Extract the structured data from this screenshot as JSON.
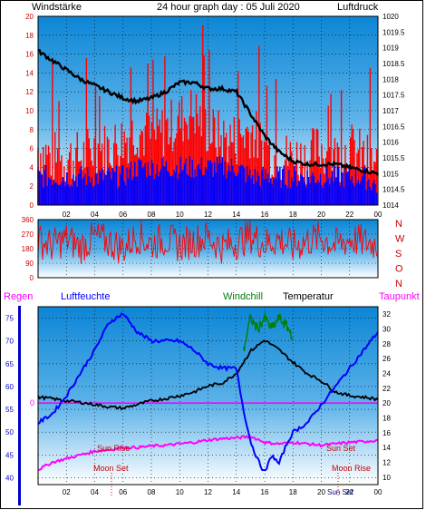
{
  "header": {
    "left_label": "Windstärke",
    "title": "24 hour graph day : 05 Juli 2020",
    "right_label": "Luftdruck"
  },
  "colors": {
    "wind": "#ff0000",
    "gust": "#0000ff",
    "pressure": "#000000",
    "humidity": "#0000ff",
    "temperature": "#000000",
    "dewpoint": "#ff00ff",
    "windchill": "#008000",
    "rain": "#ff00ff",
    "annotation": "#cc0000"
  },
  "chart_data": [
    {
      "type": "line",
      "id": "wind-pressure",
      "title": "24 hour graph day : 05 Juli 2020",
      "x_ticks": [
        "02",
        "04",
        "06",
        "08",
        "10",
        "12",
        "14",
        "16",
        "18",
        "20",
        "22",
        "00"
      ],
      "x_range_hours": [
        0,
        24
      ],
      "y_left_label": "Windstärke",
      "y_left_ticks": [
        "0",
        "2",
        "4",
        "6",
        "8",
        "10",
        "12",
        "14",
        "16",
        "18",
        "20"
      ],
      "y_left_range": [
        0,
        20
      ],
      "y_right_label": "Luftdruck",
      "y_right_ticks": [
        "1014",
        "1014.5",
        "1015",
        "1015.5",
        "1016",
        "1016.5",
        "1017",
        "1017.5",
        "1018",
        "1018.5",
        "1019",
        "1019.5",
        "1020"
      ],
      "y_right_range": [
        1014,
        1020
      ],
      "series": [
        {
          "name": "Luftdruck",
          "axis": "right",
          "x": [
            0,
            1,
            2,
            3,
            4,
            5,
            6,
            7,
            8,
            9,
            10,
            11,
            12,
            13,
            14,
            15,
            16,
            17,
            18,
            19,
            20,
            21,
            22,
            23,
            24
          ],
          "values": [
            1018.9,
            1018.6,
            1018.3,
            1018.0,
            1017.8,
            1017.6,
            1017.4,
            1017.3,
            1017.4,
            1017.6,
            1017.9,
            1017.9,
            1017.7,
            1017.7,
            1017.6,
            1016.9,
            1016.2,
            1015.7,
            1015.4,
            1015.3,
            1015.3,
            1015.3,
            1015.2,
            1015.1,
            1015.0
          ]
        },
        {
          "name": "Windstärke",
          "axis": "left",
          "x": [
            0,
            1,
            2,
            3,
            4,
            5,
            6,
            7,
            8,
            9,
            10,
            11,
            12,
            13,
            14,
            15,
            16,
            17,
            18,
            19,
            20,
            21,
            22,
            23,
            24
          ],
          "values": [
            6,
            5,
            5,
            5,
            6,
            6,
            7,
            8,
            7,
            8,
            9,
            10,
            8,
            7,
            7,
            8,
            6,
            5,
            5,
            5,
            6,
            5,
            6,
            5,
            4
          ]
        },
        {
          "name": "Böen",
          "axis": "left",
          "x": [
            0,
            1,
            2,
            3,
            4,
            5,
            6,
            7,
            8,
            9,
            10,
            11,
            12,
            13,
            14,
            15,
            16,
            17,
            18,
            19,
            20,
            21,
            22,
            23,
            24
          ],
          "values": [
            3,
            3,
            3,
            3,
            3,
            3,
            3,
            4,
            4,
            4,
            4,
            4,
            4,
            4,
            4,
            3,
            3,
            3,
            3,
            3,
            3,
            3,
            3,
            3,
            2
          ]
        }
      ]
    },
    {
      "type": "line",
      "id": "wind-direction",
      "x_ticks": [
        "02",
        "04",
        "06",
        "08",
        "10",
        "12",
        "14",
        "16",
        "18",
        "20",
        "22",
        "00"
      ],
      "y_ticks": [
        "0",
        "90",
        "180",
        "270",
        "360"
      ],
      "y_range": [
        0,
        360
      ],
      "y_right_labels": [
        "N",
        "W",
        "S",
        "O",
        "N"
      ],
      "series": [
        {
          "name": "Windrichtung",
          "x": [
            0,
            1,
            2,
            3,
            4,
            5,
            6,
            7,
            8,
            9,
            10,
            11,
            12,
            13,
            14,
            15,
            16,
            17,
            18,
            19,
            20,
            21,
            22,
            23,
            24
          ],
          "values": [
            230,
            200,
            240,
            190,
            250,
            220,
            180,
            260,
            210,
            240,
            200,
            230,
            250,
            190,
            220,
            260,
            210,
            240,
            190,
            230,
            250,
            200,
            240,
            220,
            210
          ]
        }
      ]
    },
    {
      "type": "line",
      "id": "temp-humidity",
      "x_ticks": [
        "02",
        "04",
        "06",
        "08",
        "10",
        "12",
        "14",
        "16",
        "18",
        "20",
        "22",
        "00"
      ],
      "legend": [
        "Regen",
        "Luftfeuchte",
        "Windchill",
        "Temperatur",
        "Taupunkt"
      ],
      "y_left_ticks": [
        "40",
        "45",
        "50",
        "55",
        "60",
        "65",
        "70",
        "75"
      ],
      "y_left_range": [
        38.5,
        77.5
      ],
      "y_right_ticks": [
        "10",
        "12",
        "14",
        "16",
        "18",
        "20",
        "22",
        "24",
        "26",
        "28",
        "30",
        "32"
      ],
      "y_right_range": [
        9,
        33
      ],
      "rain_zero_label": "0",
      "annotations": {
        "sun_rise_am": "Sun Rise",
        "sun_set_pm": "Sun Set",
        "moon_set_am": "Moon Set",
        "moon_rise_pm": "Moon Rise",
        "sun_set_axis": "Sun Set"
      },
      "series": [
        {
          "name": "Luftfeuchte",
          "axis": "left",
          "x": [
            0,
            1,
            2,
            3,
            4,
            5,
            6,
            7,
            8,
            9,
            10,
            11,
            12,
            13,
            14,
            14.5,
            15,
            15.5,
            16,
            16.5,
            17,
            17.5,
            18,
            19,
            20,
            21,
            22,
            23,
            24
          ],
          "values": [
            52,
            54,
            58,
            63,
            68,
            74,
            76,
            72,
            70,
            70,
            70,
            68,
            65,
            64,
            64,
            55,
            48,
            44,
            41,
            45,
            43,
            47,
            50,
            52,
            56,
            60,
            64,
            68,
            72
          ]
        },
        {
          "name": "Temperatur",
          "axis": "right",
          "x": [
            0,
            1,
            2,
            3,
            4,
            5,
            6,
            7,
            8,
            9,
            10,
            11,
            12,
            13,
            14,
            15,
            16,
            17,
            18,
            19,
            20,
            21,
            22,
            23,
            24
          ],
          "values": [
            20.8,
            20.6,
            20.3,
            20.1,
            19.8,
            19.5,
            19.3,
            19.8,
            20.3,
            20.6,
            21.0,
            21.5,
            22.3,
            22.7,
            24.0,
            27.0,
            28.5,
            27.2,
            25.5,
            24.0,
            23.0,
            21.5,
            21.0,
            20.8,
            20.5
          ]
        },
        {
          "name": "Taupunkt",
          "axis": "right",
          "x": [
            0,
            1,
            2,
            3,
            4,
            5,
            6,
            7,
            8,
            9,
            10,
            11,
            12,
            13,
            14,
            15,
            16,
            17,
            18,
            19,
            20,
            21,
            22,
            23,
            24
          ],
          "values": [
            11.0,
            12.0,
            12.5,
            13.0,
            13.5,
            13.7,
            14.0,
            14.0,
            14.2,
            14.3,
            14.5,
            14.7,
            15.0,
            15.2,
            15.3,
            15.5,
            14.7,
            14.5,
            14.7,
            14.5,
            14.3,
            14.5,
            14.7,
            14.8,
            15.0
          ]
        },
        {
          "name": "Windchill",
          "axis": "right",
          "x": [
            14.5,
            15,
            15.5,
            16,
            16.5,
            17,
            17.5,
            18
          ],
          "values": [
            27,
            31.5,
            30,
            31.5,
            30,
            31.5,
            30.5,
            29
          ]
        }
      ]
    }
  ]
}
